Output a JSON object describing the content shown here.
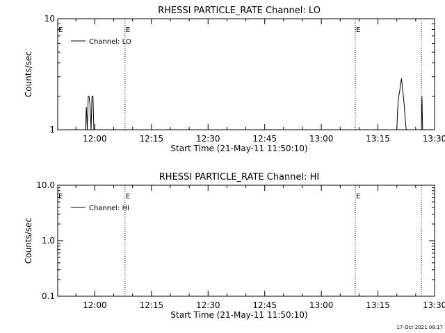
{
  "chart_data": [
    {
      "type": "line",
      "title": "RHESSI PARTICLE_RATE Channel: LO",
      "xlabel": "Start Time (21-May-11 11:50:10)",
      "ylabel": "Counts/sec",
      "x_ticks": [
        "12:00",
        "12:15",
        "12:30",
        "12:45",
        "13:00",
        "13:15",
        "13:30"
      ],
      "y_ticks": [
        "1",
        "10"
      ],
      "y_scale": "log",
      "ylim": [
        1,
        10
      ],
      "xlim": [
        "11:50:10",
        "13:30:00"
      ],
      "legend": {
        "label": "Channel: LO",
        "placement": "top-left"
      },
      "event_lines": [
        {
          "time": "12:08:00",
          "label": "E"
        },
        {
          "time": "13:09:00",
          "label": "E"
        },
        {
          "time": "13:26:30",
          "label": ""
        }
      ],
      "start_label": "E",
      "series": [
        {
          "name": "Channel: LO",
          "points": [
            [
              "11:57:30",
              1
            ],
            [
              "11:57:45",
              1.6
            ],
            [
              "11:58:00",
              1
            ],
            [
              "11:58:15",
              2
            ],
            [
              "11:58:30",
              2
            ],
            [
              "11:58:45",
              1.6
            ],
            [
              "11:59:00",
              1
            ],
            [
              "11:59:15",
              2
            ],
            [
              "11:59:30",
              2
            ],
            [
              "11:59:45",
              1
            ]
          ]
        },
        {
          "name": "Channel: LO",
          "points": [
            [
              "13:20:00",
              1
            ],
            [
              "13:20:15",
              1.6
            ],
            [
              "13:20:30",
              2
            ],
            [
              "13:20:45",
              2.2
            ],
            [
              "13:21:00",
              2.6
            ],
            [
              "13:21:15",
              2.9
            ],
            [
              "13:21:30",
              2.3
            ],
            [
              "13:21:45",
              2
            ],
            [
              "13:22:00",
              1.6
            ],
            [
              "13:22:15",
              1.2
            ],
            [
              "13:22:30",
              1
            ]
          ]
        },
        {
          "name": "Channel: LO",
          "points": [
            [
              "13:26:30",
              1
            ],
            [
              "13:26:40",
              2
            ],
            [
              "13:26:50",
              1
            ]
          ]
        }
      ]
    },
    {
      "type": "line",
      "title": "RHESSI PARTICLE_RATE Channel: HI",
      "xlabel": "Start Time (21-May-11 11:50:10)",
      "ylabel": "Counts/sec",
      "x_ticks": [
        "12:00",
        "12:15",
        "12:30",
        "12:45",
        "13:00",
        "13:15",
        "13:30"
      ],
      "y_ticks": [
        "0.1",
        "1.0",
        "10.0"
      ],
      "y_scale": "log",
      "ylim": [
        0.1,
        10
      ],
      "xlim": [
        "11:50:10",
        "13:30:00"
      ],
      "legend": {
        "label": "Channel: HI",
        "placement": "top-left"
      },
      "event_lines": [
        {
          "time": "12:08:00",
          "label": "E"
        },
        {
          "time": "13:09:00",
          "label": "E"
        },
        {
          "time": "13:26:30",
          "label": ""
        }
      ],
      "start_label": "E",
      "series": [
        {
          "name": "Channel: HI",
          "points": []
        }
      ]
    }
  ],
  "timestamp": "17-Oct-2021 08:17"
}
